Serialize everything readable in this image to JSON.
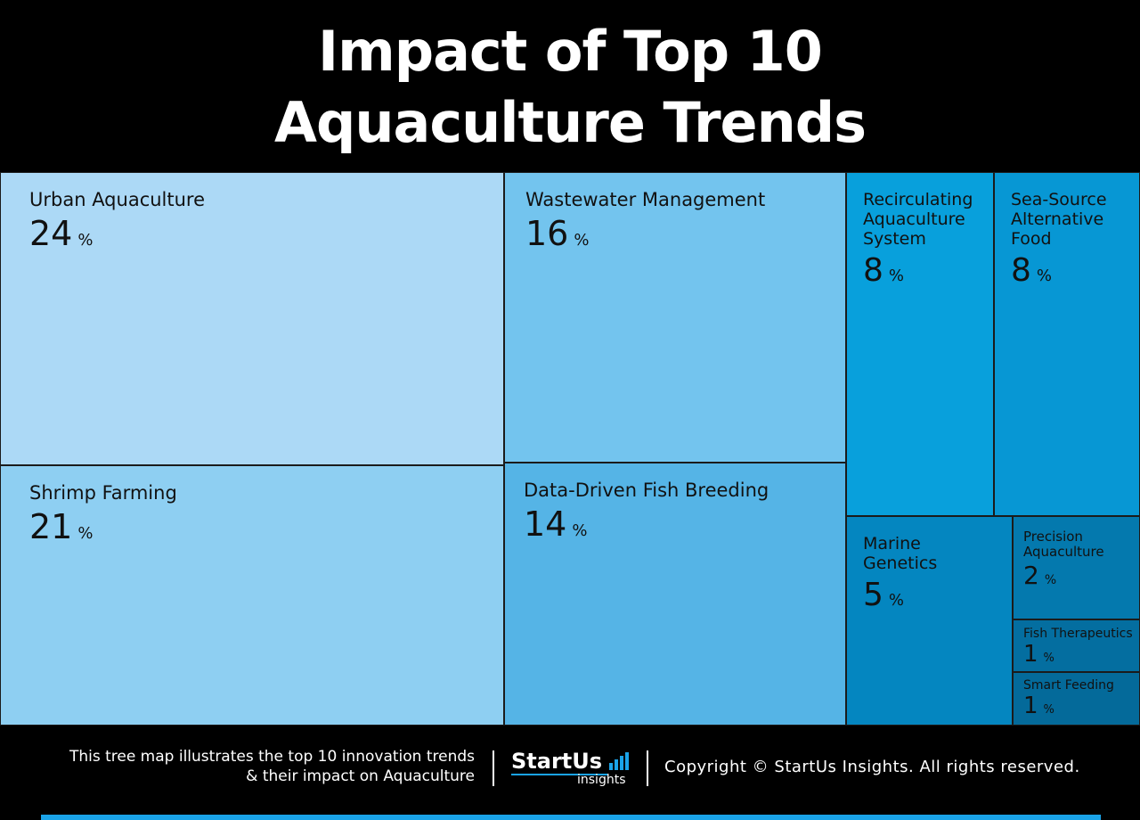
{
  "title_lines": [
    "Impact of Top 10",
    "Aquaculture Trends"
  ],
  "chart_data": {
    "type": "treemap",
    "title": "Impact of Top 10 Aquaculture Trends",
    "unit": "%",
    "items": [
      {
        "name": "Urban Aquaculture",
        "value": 24,
        "color": "#acd9f6"
      },
      {
        "name": "Shrimp Farming",
        "value": 21,
        "color": "#8ecff2"
      },
      {
        "name": "Wastewater Management",
        "value": 16,
        "color": "#73c4ee"
      },
      {
        "name": "Data-Driven Fish Breeding",
        "value": 14,
        "color": "#55b4e6"
      },
      {
        "name": "Recirculating\nAquaculture\nSystem",
        "value": 8,
        "color": "#08a0dc"
      },
      {
        "name": "Sea-Source\nAlternative\nFood",
        "value": 8,
        "color": "#0797d4"
      },
      {
        "name": "Marine\nGenetics",
        "value": 5,
        "color": "#0486c0"
      },
      {
        "name": "Precision\nAquaculture",
        "value": 2,
        "color": "#0479ae"
      },
      {
        "name": "Fish Therapeutics",
        "value": 1,
        "color": "#046ea0"
      },
      {
        "name": "Smart Feeding",
        "value": 1,
        "color": "#046a9a"
      }
    ]
  },
  "footer": {
    "caption_lines": [
      "This tree map illustrates the top 10 innovation trends",
      "& their impact on Aquaculture"
    ],
    "logo_main": "StartUs",
    "logo_sub": "insights",
    "copyright": "Copyright © StartUs Insights. All rights reserved."
  }
}
